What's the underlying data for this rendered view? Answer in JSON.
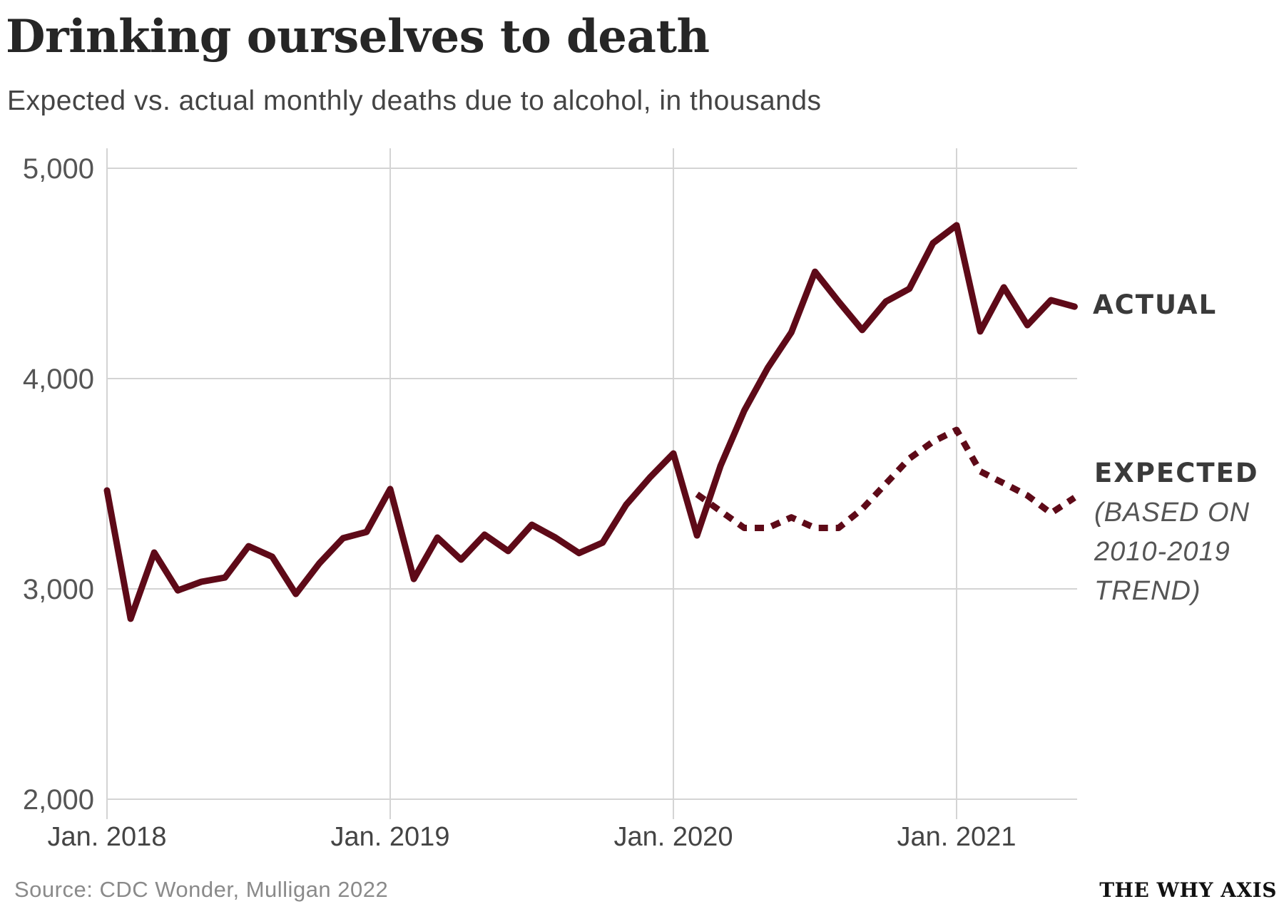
{
  "header": {
    "title": "Drinking ourselves to death",
    "subtitle": "Expected vs. actual monthly deaths due to alcohol, in thousands"
  },
  "footer": {
    "source": "Source: CDC Wonder, Mulligan 2022",
    "brand": "THE WHY AXIS"
  },
  "colors": {
    "series": "#5e0a18",
    "grid": "#d4d4d4",
    "text": "#262626"
  },
  "chart_data": {
    "type": "line",
    "title": "Drinking ourselves to death",
    "subtitle": "Expected vs. actual monthly deaths due to alcohol, in thousands",
    "xlabel": "",
    "ylabel": "",
    "ylim": [
      2000,
      5000
    ],
    "yticks": [
      2000,
      3000,
      4000,
      5000
    ],
    "ytick_labels": [
      "2,000",
      "3,000",
      "4,000",
      "5,000"
    ],
    "xticks": [
      0,
      12,
      24,
      36
    ],
    "xtick_labels": [
      "Jan. 2018",
      "Jan. 2019",
      "Jan. 2020",
      "Jan. 2021"
    ],
    "xlim": [
      0,
      41
    ],
    "grid": true,
    "legend": "direct labels at right",
    "x_unit": "months since Jan. 2018",
    "series": [
      {
        "name": "ACTUAL",
        "label_lines": [
          "ACTUAL"
        ],
        "style": "solid",
        "x": [
          0,
          1,
          2,
          3,
          4,
          5,
          6,
          7,
          8,
          9,
          10,
          11,
          12,
          13,
          14,
          15,
          16,
          17,
          18,
          19,
          20,
          21,
          22,
          23,
          24,
          25,
          26,
          27,
          28,
          29,
          30,
          31,
          32,
          33,
          34,
          35,
          36,
          37,
          38,
          39,
          40,
          41
        ],
        "values": [
          3468,
          2858,
          3173,
          2993,
          3034,
          3054,
          3203,
          3153,
          2976,
          3122,
          3241,
          3271,
          3475,
          3047,
          3244,
          3139,
          3258,
          3180,
          3305,
          3244,
          3170,
          3220,
          3400,
          3529,
          3644,
          3254,
          3586,
          3847,
          4051,
          4220,
          4508,
          4366,
          4231,
          4366,
          4427,
          4644,
          4729,
          4224,
          4434,
          4254,
          4373,
          4342
        ]
      },
      {
        "name": "EXPECTED",
        "label_lines": [
          "EXPECTED",
          "(BASED ON",
          "2010-2019",
          "TREND)"
        ],
        "style": "dotted",
        "x": [
          25,
          26,
          27,
          28,
          29,
          30,
          31,
          32,
          33,
          34,
          35,
          36,
          37,
          38,
          39,
          40,
          41
        ],
        "values": [
          3450,
          3370,
          3290,
          3290,
          3340,
          3290,
          3290,
          3380,
          3500,
          3620,
          3700,
          3756,
          3559,
          3502,
          3444,
          3360,
          3434
        ]
      }
    ]
  }
}
